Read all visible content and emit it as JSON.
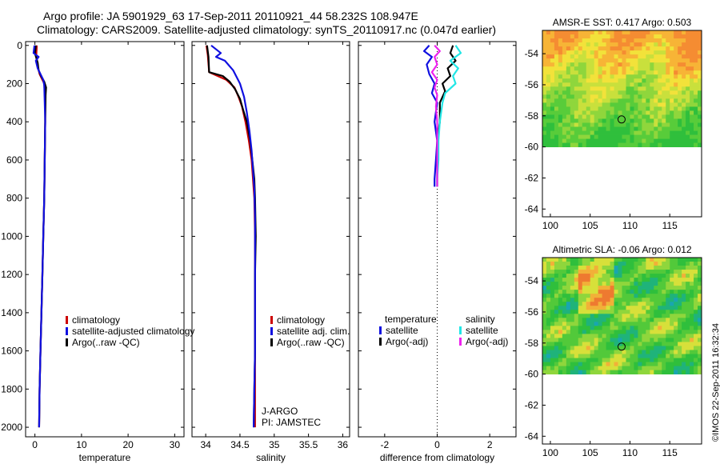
{
  "header": {
    "line1": "Argo profile: JA 5901929_63 17-Sep-2011 20110921_44 58.232S 108.947E",
    "line2": "Climatology: CARS2009. Satellite-adjusted climatology: synTS_20110917.nc (0.047d earlier)"
  },
  "footer_stamp": "©IMOS 22-Sep-2011 16:32:34",
  "colors": {
    "climatology": "#cc0000",
    "satellite": "#1010e0",
    "argo": "#000000",
    "sal_satellite": "#22e6e6",
    "sal_argo": "#ee22ee"
  },
  "chart_data": [
    {
      "type": "line",
      "title": "",
      "xlabel": "temperature",
      "ylabel": "",
      "xlim": [
        -2,
        32
      ],
      "ylim": [
        2050,
        -20
      ],
      "xticks": [
        0,
        10,
        20,
        30
      ],
      "yticks": [
        0,
        200,
        400,
        600,
        800,
        1000,
        1200,
        1400,
        1600,
        1800,
        2000
      ],
      "legend": {
        "location": "middle-right",
        "entries": [
          "climatology",
          "satellite-adjusted climatology",
          "Argo(..raw -QC)"
        ]
      },
      "series": [
        {
          "name": "climatology",
          "color": "#cc0000",
          "points": [
            [
              0.4,
              0
            ],
            [
              0.3,
              50
            ],
            [
              0.5,
              100
            ],
            [
              1.0,
              150
            ],
            [
              2.0,
              200
            ],
            [
              2.2,
              300
            ],
            [
              2.2,
              400
            ],
            [
              2.1,
              600
            ],
            [
              2.0,
              800
            ],
            [
              1.8,
              1000
            ],
            [
              1.6,
              1200
            ],
            [
              1.4,
              1400
            ],
            [
              1.2,
              1600
            ],
            [
              1.0,
              1800
            ],
            [
              0.9,
              2000
            ]
          ]
        },
        {
          "name": "Argo(..raw -QC)",
          "color": "#000000",
          "points": [
            [
              0.2,
              0
            ],
            [
              0.0,
              40
            ],
            [
              0.6,
              90
            ],
            [
              0.8,
              130
            ],
            [
              1.3,
              160
            ],
            [
              2.0,
              190
            ],
            [
              2.4,
              220
            ],
            [
              2.3,
              260
            ],
            [
              2.2,
              400
            ],
            [
              2.1,
              600
            ],
            [
              2.0,
              800
            ],
            [
              1.8,
              1000
            ],
            [
              1.6,
              1200
            ],
            [
              1.4,
              1400
            ],
            [
              1.2,
              1600
            ],
            [
              1.0,
              1800
            ],
            [
              0.9,
              2000
            ]
          ]
        },
        {
          "name": "satellite-adjusted climatology",
          "color": "#1010e0",
          "points": [
            [
              -0.1,
              0
            ],
            [
              -0.3,
              40
            ],
            [
              0.8,
              60
            ],
            [
              0.2,
              80
            ],
            [
              0.6,
              120
            ],
            [
              1.2,
              150
            ],
            [
              1.8,
              180
            ],
            [
              2.0,
              210
            ],
            [
              2.1,
              300
            ],
            [
              2.2,
              400
            ],
            [
              2.1,
              600
            ],
            [
              2.0,
              800
            ],
            [
              1.8,
              1000
            ],
            [
              1.6,
              1200
            ],
            [
              1.4,
              1400
            ],
            [
              1.2,
              1600
            ],
            [
              1.0,
              1800
            ],
            [
              0.9,
              2000
            ]
          ]
        }
      ]
    },
    {
      "type": "line",
      "title": "",
      "xlabel": "salinity",
      "ylabel": "",
      "xlim": [
        33.8,
        36.1
      ],
      "ylim": [
        2050,
        -20
      ],
      "xticks": [
        34,
        34.5,
        35,
        35.5,
        36
      ],
      "xticklabels": [
        "34",
        "34.5",
        "35",
        "35.5",
        "36"
      ],
      "legend": {
        "location": "middle-right",
        "entries": [
          "climatology",
          "satellite adj. clim.",
          "Argo(..raw -QC)"
        ]
      },
      "annotation": [
        "J-ARGO",
        "PI: JAMSTEC"
      ],
      "series": [
        {
          "name": "climatology",
          "color": "#cc0000",
          "points": [
            [
              34.01,
              0
            ],
            [
              34.03,
              50
            ],
            [
              34.05,
              140
            ],
            [
              34.3,
              180
            ],
            [
              34.42,
              220
            ],
            [
              34.48,
              270
            ],
            [
              34.53,
              320
            ],
            [
              34.58,
              400
            ],
            [
              34.63,
              500
            ],
            [
              34.67,
              600
            ],
            [
              34.69,
              700
            ],
            [
              34.71,
              800
            ],
            [
              34.72,
              1000
            ],
            [
              34.72,
              1200
            ],
            [
              34.72,
              1400
            ],
            [
              34.72,
              1600
            ],
            [
              34.72,
              1800
            ],
            [
              34.72,
              2000
            ]
          ]
        },
        {
          "name": "Argo(..raw -QC)",
          "color": "#000000",
          "points": [
            [
              34.02,
              0
            ],
            [
              34.04,
              60
            ],
            [
              34.05,
              140
            ],
            [
              34.25,
              160
            ],
            [
              34.35,
              190
            ],
            [
              34.43,
              230
            ],
            [
              34.5,
              280
            ],
            [
              34.54,
              330
            ],
            [
              34.6,
              400
            ],
            [
              34.65,
              500
            ],
            [
              34.68,
              600
            ],
            [
              34.71,
              700
            ],
            [
              34.72,
              800
            ],
            [
              34.73,
              1000
            ],
            [
              34.72,
              1200
            ],
            [
              34.72,
              1400
            ],
            [
              34.72,
              1600
            ],
            [
              34.71,
              1800
            ],
            [
              34.7,
              2000
            ]
          ]
        },
        {
          "name": "satellite adj. clim.",
          "color": "#1010e0",
          "points": [
            [
              34.08,
              0
            ],
            [
              34.22,
              40
            ],
            [
              34.15,
              60
            ],
            [
              34.28,
              80
            ],
            [
              34.4,
              130
            ],
            [
              34.5,
              200
            ],
            [
              34.56,
              270
            ],
            [
              34.6,
              350
            ],
            [
              34.64,
              450
            ],
            [
              34.67,
              550
            ],
            [
              34.69,
              650
            ],
            [
              34.71,
              750
            ],
            [
              34.72,
              900
            ],
            [
              34.72,
              1200
            ],
            [
              34.72,
              1400
            ],
            [
              34.72,
              1600
            ],
            [
              34.71,
              1800
            ],
            [
              34.7,
              2000
            ]
          ]
        }
      ]
    },
    {
      "type": "line",
      "title": "",
      "xlabel": "difference from climatology",
      "ylabel": "",
      "xlim": [
        -3,
        3
      ],
      "ylim": [
        2050,
        -20
      ],
      "xticks": [
        -2,
        0,
        2
      ],
      "legend": {
        "location": "middle",
        "temperature_heading": "temperature",
        "salinity_heading": "salinity",
        "entries": [
          "satellite",
          "Argo(-adj)",
          "satellite",
          "Argo(-adj)"
        ]
      },
      "series": [
        {
          "name": "temperature satellite",
          "color": "#1010e0",
          "points": [
            [
              -0.3,
              0
            ],
            [
              -0.5,
              30
            ],
            [
              -0.2,
              60
            ],
            [
              -0.4,
              100
            ],
            [
              -0.3,
              150
            ],
            [
              -0.1,
              200
            ],
            [
              -0.2,
              250
            ],
            [
              0.0,
              300
            ],
            [
              -0.1,
              400
            ],
            [
              0.0,
              500
            ],
            [
              -0.05,
              600
            ],
            [
              -0.1,
              700
            ],
            [
              -0.1,
              740
            ]
          ]
        },
        {
          "name": "temperature Argo(-adj)",
          "color": "#000000",
          "points": [
            [
              0.6,
              0
            ],
            [
              0.5,
              40
            ],
            [
              0.7,
              80
            ],
            [
              0.4,
              120
            ],
            [
              0.5,
              160
            ],
            [
              0.2,
              200
            ],
            [
              0.3,
              240
            ],
            [
              0.1,
              300
            ],
            [
              0.1,
              400
            ],
            [
              0.0,
              500
            ],
            [
              0.0,
              600
            ],
            [
              0.0,
              700
            ],
            [
              0.0,
              740
            ]
          ]
        },
        {
          "name": "salinity satellite",
          "color": "#22e6e6",
          "points": [
            [
              0.7,
              0
            ],
            [
              0.9,
              40
            ],
            [
              0.5,
              80
            ],
            [
              0.8,
              120
            ],
            [
              0.6,
              160
            ],
            [
              0.7,
              200
            ],
            [
              0.3,
              250
            ],
            [
              0.2,
              300
            ],
            [
              0.1,
              400
            ],
            [
              0.05,
              500
            ],
            [
              0.05,
              600
            ],
            [
              0.0,
              700
            ],
            [
              0.0,
              740
            ]
          ]
        },
        {
          "name": "salinity Argo(-adj)",
          "color": "#ee22ee",
          "points": [
            [
              -0.1,
              0
            ],
            [
              0.1,
              30
            ],
            [
              -0.1,
              60
            ],
            [
              0.0,
              100
            ],
            [
              -0.2,
              140
            ],
            [
              0.0,
              180
            ],
            [
              -0.1,
              220
            ],
            [
              0.0,
              260
            ],
            [
              -0.05,
              320
            ],
            [
              0.0,
              400
            ],
            [
              0.0,
              500
            ],
            [
              0.0,
              600
            ],
            [
              0.0,
              700
            ],
            [
              0.0,
              740
            ]
          ]
        }
      ]
    },
    {
      "type": "heatmap",
      "title": "AMSR-E SST: 0.417 Argo: 0.503",
      "xlim": [
        99,
        119
      ],
      "ylim": [
        -64.5,
        -52.5
      ],
      "xticks": [
        100,
        105,
        110,
        115
      ],
      "yticks": [
        -54,
        -56,
        -58,
        -60,
        -62,
        -64
      ],
      "data_bottom": -60,
      "marker": {
        "lon": 108.947,
        "lat": -58.232
      },
      "palette": [
        "#2fbf3c",
        "#58cc3a",
        "#8fd63c",
        "#c9e03c",
        "#f2e23a",
        "#f7b436",
        "#f58c32"
      ]
    },
    {
      "type": "heatmap",
      "title": "Altimetric SLA: -0.06 Argo: 0.012",
      "xlim": [
        99,
        119
      ],
      "ylim": [
        -64.5,
        -52.5
      ],
      "xticks": [
        100,
        105,
        110,
        115
      ],
      "yticks": [
        -54,
        -56,
        -58,
        -60,
        -62,
        -64
      ],
      "data_bottom": -60,
      "marker": {
        "lon": 108.947,
        "lat": -58.232
      },
      "palette": [
        "#19a6b0",
        "#1fb37a",
        "#2fbf3c",
        "#52c93a",
        "#8fd63c",
        "#d7e03a",
        "#f2b038",
        "#ee7a30"
      ]
    }
  ]
}
